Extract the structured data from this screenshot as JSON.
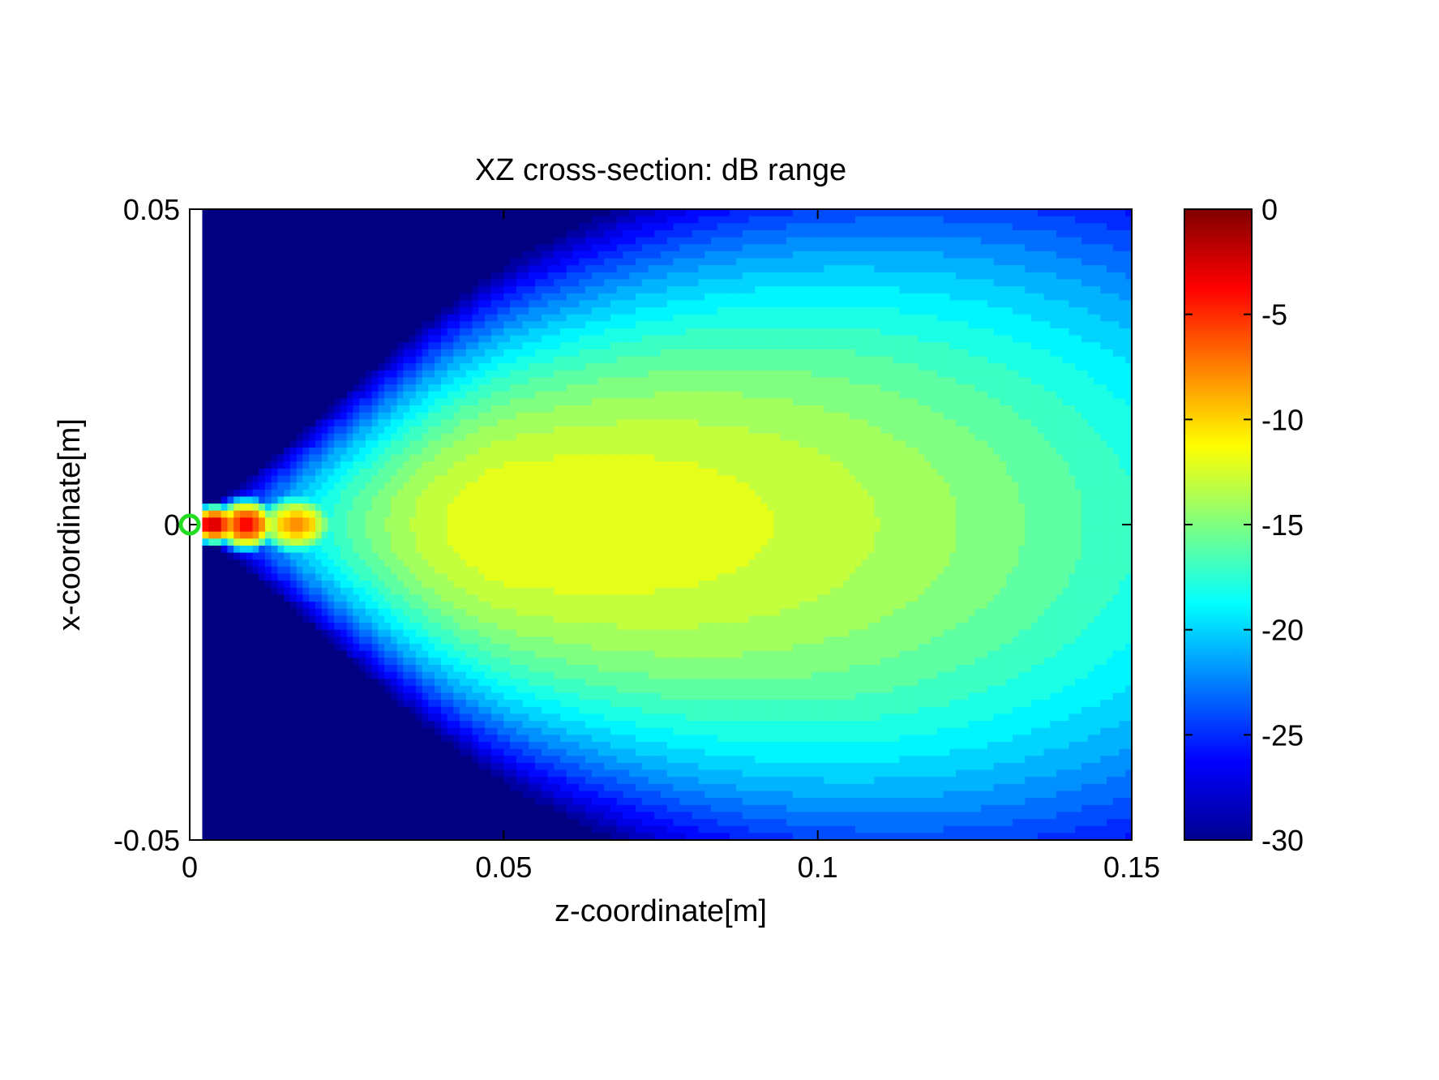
{
  "chart_data": {
    "type": "heatmap",
    "title": "XZ cross-section: dB range",
    "xlabel": "z-coordinate[m]",
    "ylabel": "x-coordinate[m]",
    "xlim": [
      0,
      0.15
    ],
    "ylim": [
      -0.05,
      0.05
    ],
    "xticks": [
      0,
      0.05,
      0.1,
      0.15
    ],
    "xtick_labels": [
      "0",
      "0.05",
      "0.1",
      "0.15"
    ],
    "yticks": [
      -0.05,
      0,
      0.05
    ],
    "ytick_labels": [
      "-0.05",
      "0",
      "0.05"
    ],
    "colorbar": {
      "colormap": "jet",
      "range": [
        -30,
        0
      ],
      "ticks": [
        0,
        -5,
        -10,
        -15,
        -20,
        -25,
        -30
      ],
      "tick_labels": [
        "0",
        "-5",
        "-10",
        "-15",
        "-20",
        "-25",
        "-30"
      ]
    },
    "source_marker": {
      "z": 0,
      "x": 0,
      "shape": "circle",
      "color": "#22dd22"
    },
    "field_summary": {
      "peak_db": 0,
      "peak_location": {
        "z": 0.002,
        "x": 0
      },
      "near_field_lobes_z": [
        0.002,
        0.004,
        0.009,
        0.017
      ],
      "near_field_lobes_db": [
        -1,
        -2,
        -4,
        -8
      ],
      "focal_max_db": -11.5,
      "focal_location": {
        "z": 0.053,
        "x": 0
      },
      "edge_db": -19,
      "background_db": -30
    }
  }
}
